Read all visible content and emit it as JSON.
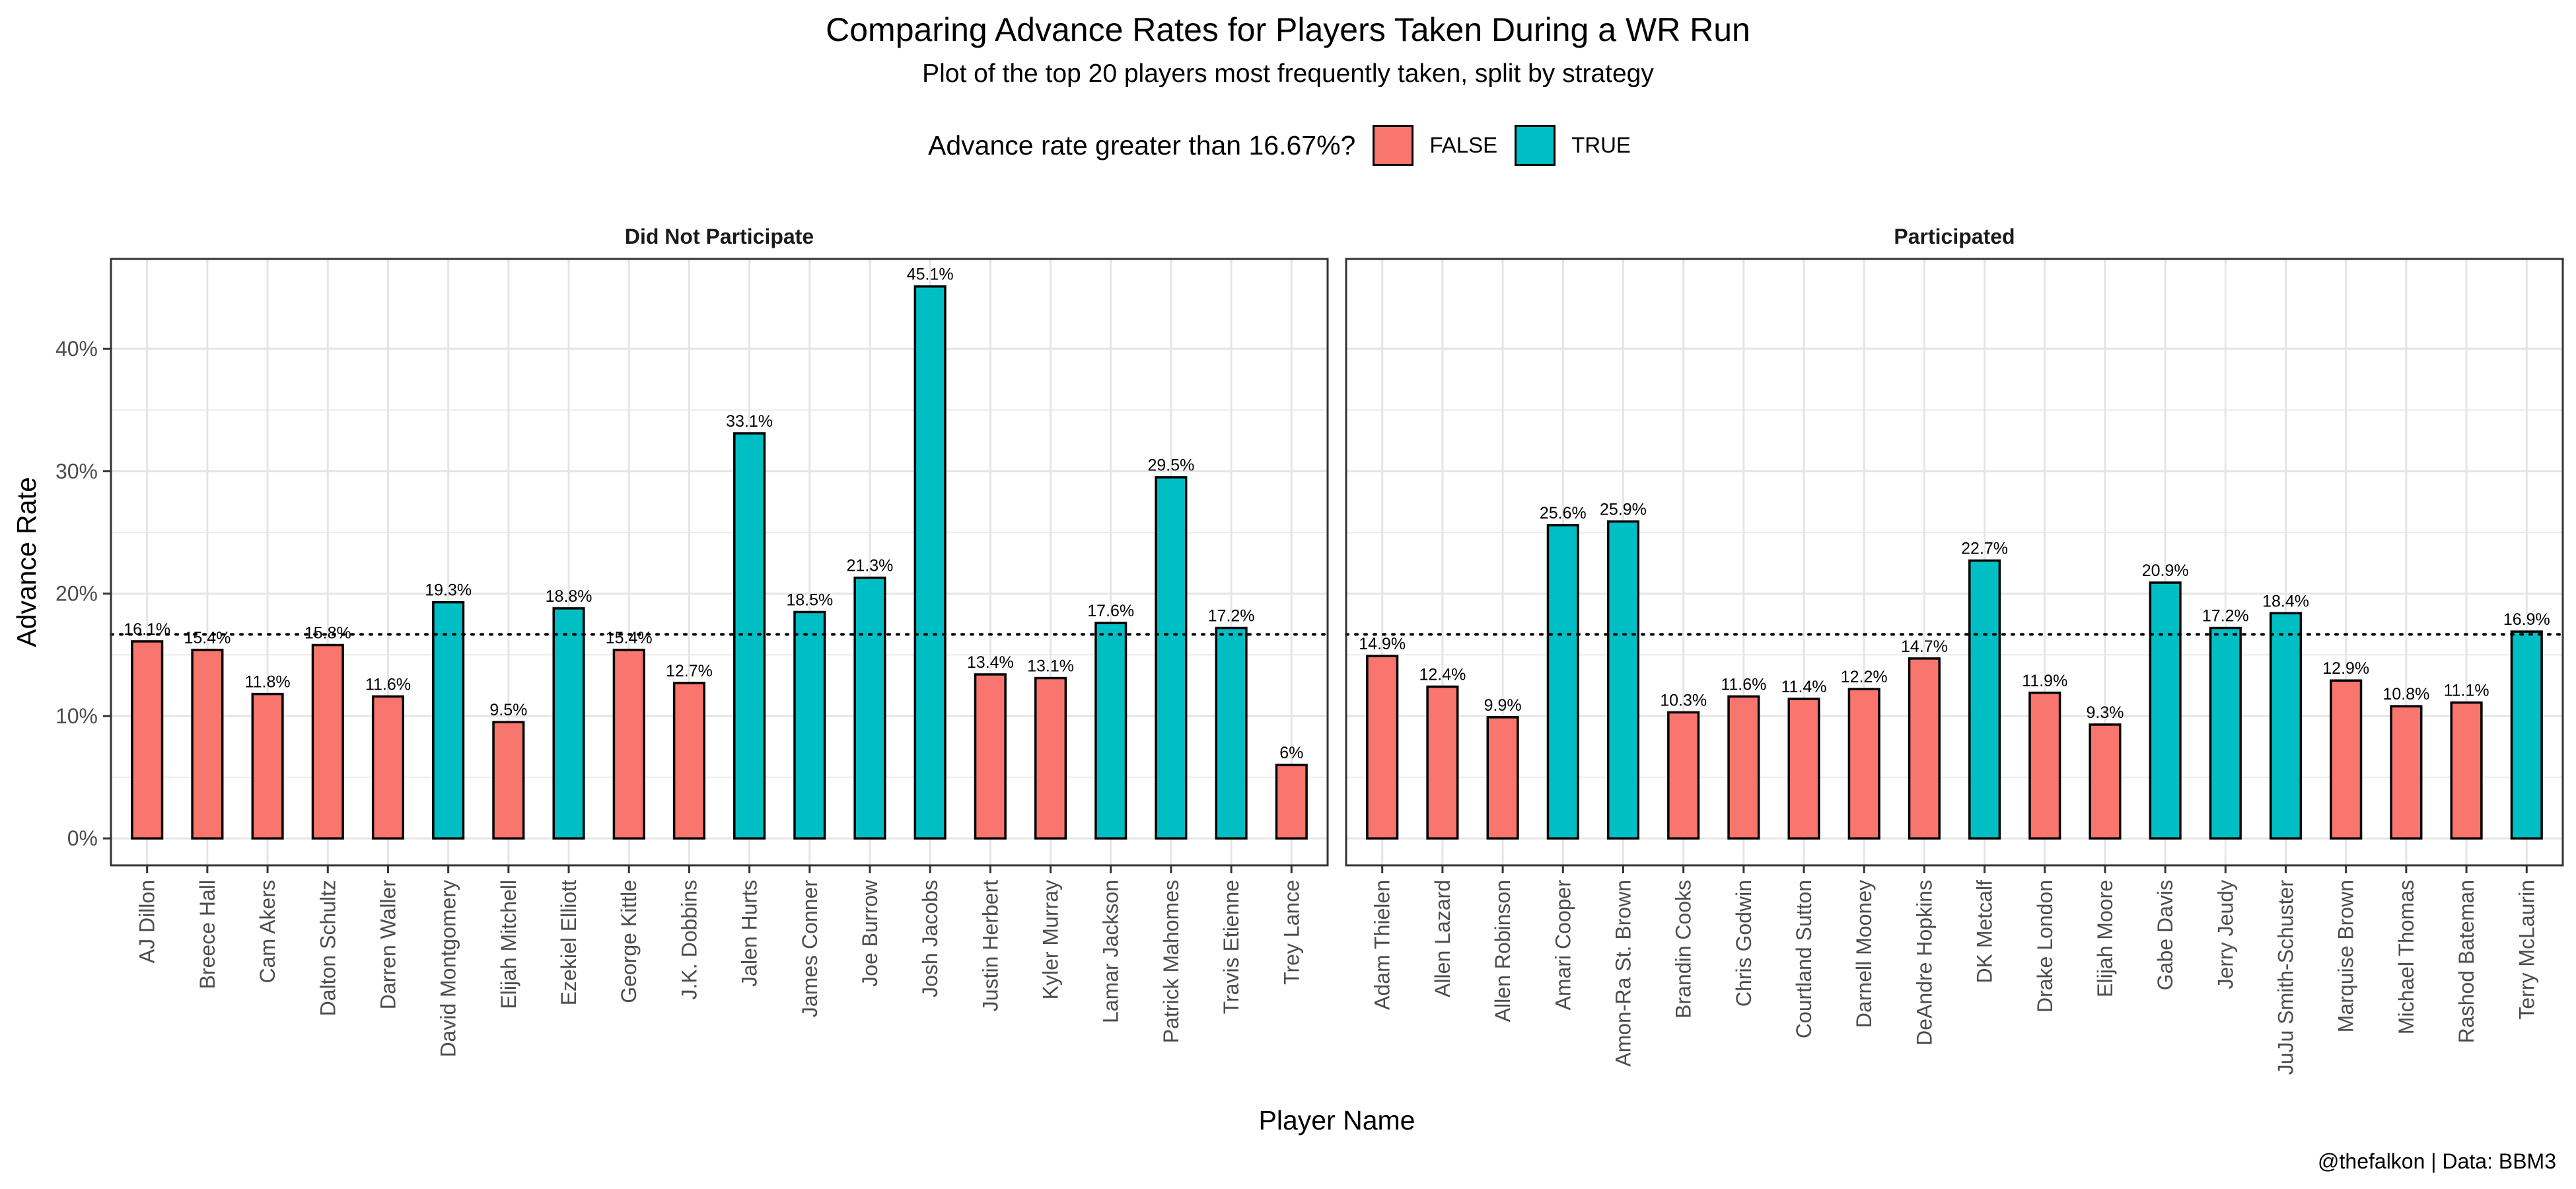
{
  "title": "Comparing Advance Rates for Players Taken During a WR Run",
  "subtitle": "Plot of the top 20 players most frequently taken, split by strategy",
  "legend": {
    "title": "Advance rate greater than 16.67%?",
    "items": [
      {
        "label": "FALSE",
        "color": "#F8766D"
      },
      {
        "label": "TRUE",
        "color": "#00BFC4"
      }
    ]
  },
  "caption": "@thefalkon | Data: BBM3",
  "chart_data": {
    "type": "bar",
    "xlabel": "Player Name",
    "ylabel": "Advance Rate",
    "ylim": [
      -0.022,
      0.4735
    ],
    "yticks": [
      0,
      0.1,
      0.2,
      0.3,
      0.4
    ],
    "ytick_labels": [
      "0%",
      "10%",
      "20%",
      "30%",
      "40%"
    ],
    "reference_line": 0.1667,
    "grid": true,
    "legend_position": "top",
    "facets": [
      {
        "label": "Did Not Participate",
        "categories": [
          "AJ Dillon",
          "Breece Hall",
          "Cam Akers",
          "Dalton Schultz",
          "Darren Waller",
          "David Montgomery",
          "Elijah Mitchell",
          "Ezekiel Elliott",
          "George Kittle",
          "J.K. Dobbins",
          "Jalen Hurts",
          "James Conner",
          "Joe Burrow",
          "Josh Jacobs",
          "Justin Herbert",
          "Kyler Murray",
          "Lamar Jackson",
          "Patrick Mahomes",
          "Travis Etienne",
          "Trey Lance"
        ],
        "values": [
          0.161,
          0.154,
          0.118,
          0.158,
          0.116,
          0.193,
          0.095,
          0.188,
          0.154,
          0.127,
          0.331,
          0.185,
          0.213,
          0.451,
          0.134,
          0.131,
          0.176,
          0.295,
          0.172,
          0.06
        ],
        "labels": [
          "16.1%",
          "15.4%",
          "11.8%",
          "15.8%",
          "11.6%",
          "19.3%",
          "9.5%",
          "18.8%",
          "15.4%",
          "12.7%",
          "33.1%",
          "18.5%",
          "21.3%",
          "45.1%",
          "13.4%",
          "13.1%",
          "17.6%",
          "29.5%",
          "17.2%",
          "6%"
        ]
      },
      {
        "label": "Participated",
        "categories": [
          "Adam Thielen",
          "Allen Lazard",
          "Allen Robinson",
          "Amari Cooper",
          "Amon-Ra St. Brown",
          "Brandin Cooks",
          "Chris Godwin",
          "Courtland Sutton",
          "Darnell Mooney",
          "DeAndre Hopkins",
          "DK Metcalf",
          "Drake London",
          "Elijah Moore",
          "Gabe Davis",
          "Jerry Jeudy",
          "JuJu Smith-Schuster",
          "Marquise Brown",
          "Michael Thomas",
          "Rashod Bateman",
          "Terry McLaurin"
        ],
        "values": [
          0.149,
          0.124,
          0.099,
          0.256,
          0.259,
          0.103,
          0.116,
          0.114,
          0.122,
          0.147,
          0.227,
          0.119,
          0.093,
          0.209,
          0.172,
          0.184,
          0.129,
          0.108,
          0.111,
          0.169
        ],
        "labels": [
          "14.9%",
          "12.4%",
          "9.9%",
          "25.6%",
          "25.9%",
          "10.3%",
          "11.6%",
          "11.4%",
          "12.2%",
          "14.7%",
          "22.7%",
          "11.9%",
          "9.3%",
          "20.9%",
          "17.2%",
          "18.4%",
          "12.9%",
          "10.8%",
          "11.1%",
          "16.9%"
        ]
      }
    ]
  }
}
